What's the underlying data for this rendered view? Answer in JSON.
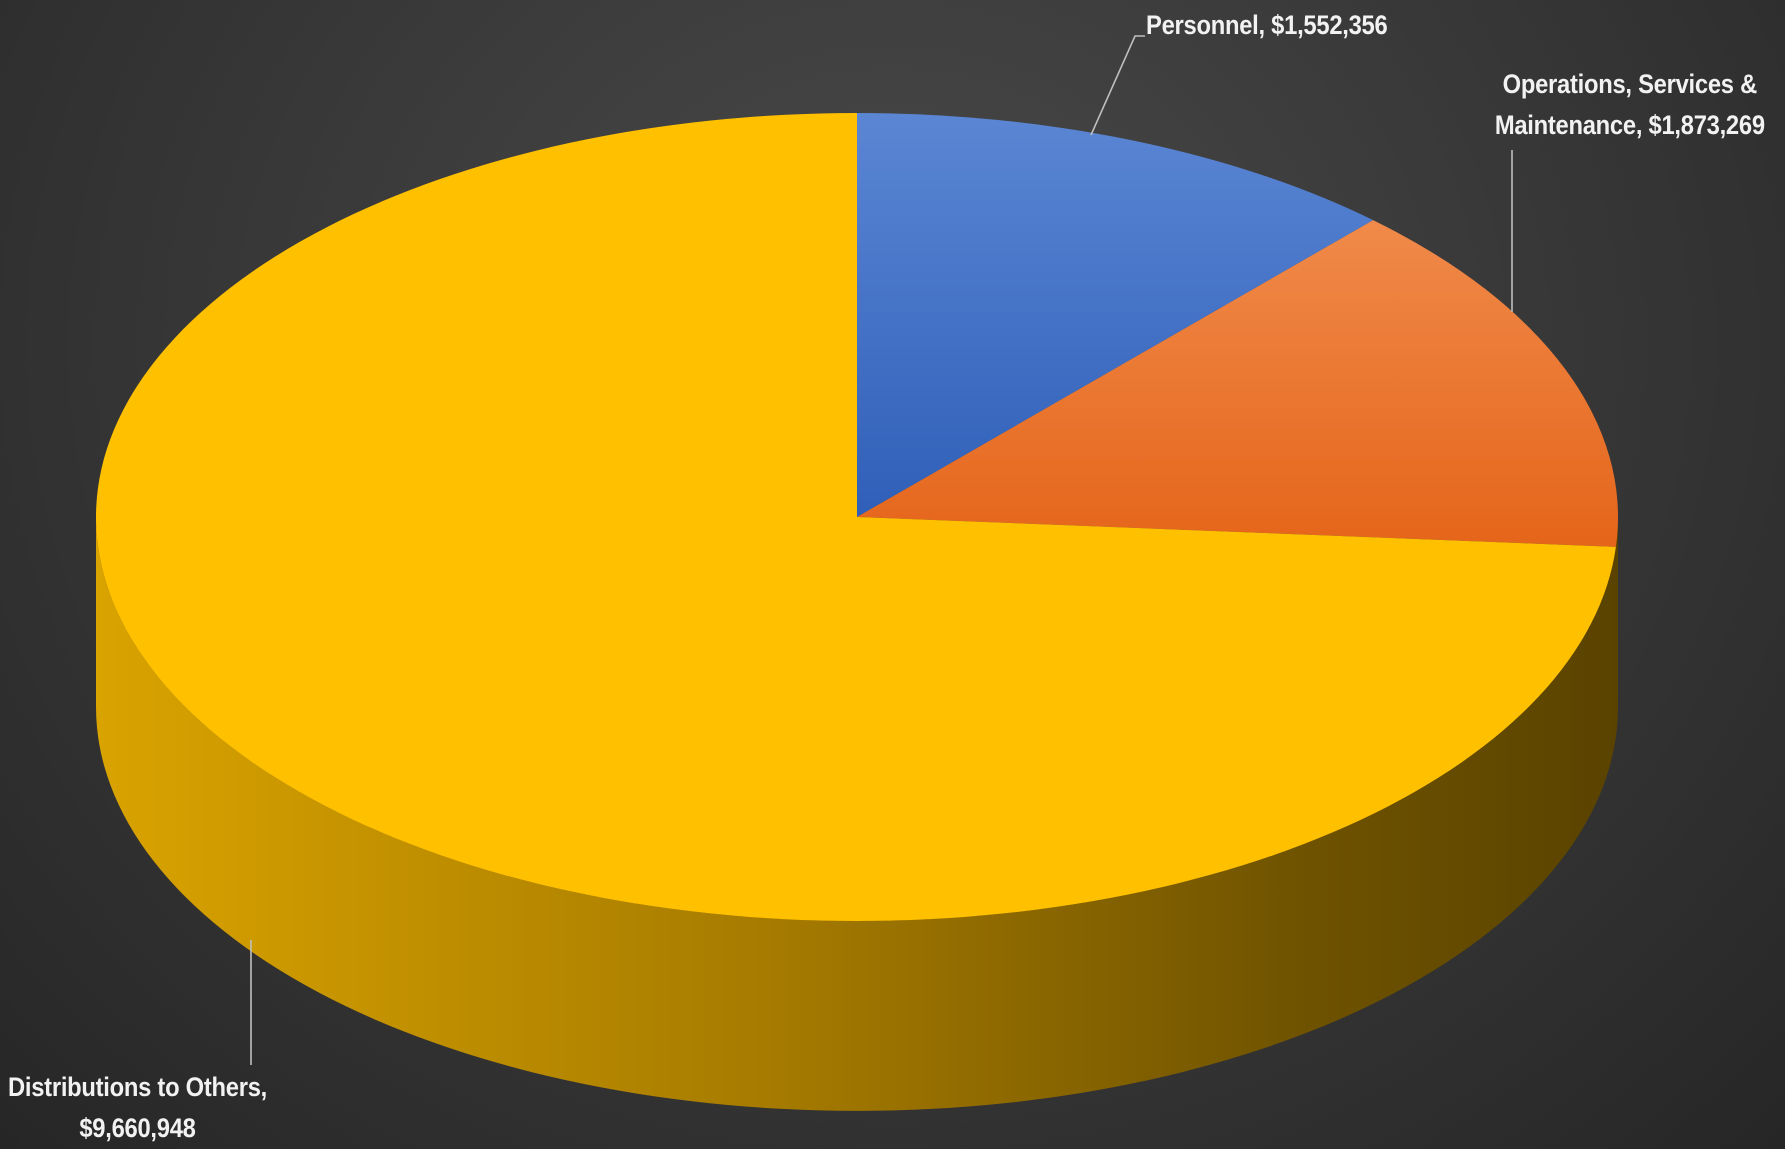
{
  "chart_data": {
    "type": "pie",
    "style": "3d",
    "title": "",
    "legend": "none",
    "start_angle_deg": 0,
    "direction": "clockwise",
    "slices": [
      {
        "name": "Personnel",
        "value": 1552356,
        "label": "Personnel,  $1,552,356",
        "color": "#4472C4"
      },
      {
        "name": "Operations, Services & Maintenance",
        "value": 1873269,
        "label_line1": "Operations, Services &",
        "label_line2": "Maintenance,  $1,873,269",
        "color": "#ED7D31"
      },
      {
        "name": "Distributions to Others",
        "value": 9660948,
        "label_line1": "Distributions to Others,",
        "label_line2": "$9,660,948",
        "color": "#FFC000"
      }
    ]
  }
}
